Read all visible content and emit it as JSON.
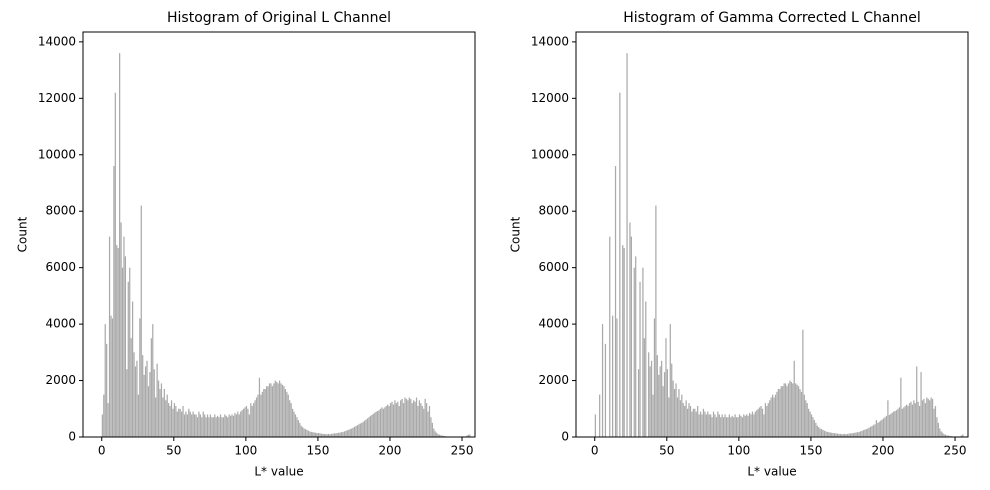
{
  "chart_data": [
    {
      "type": "histogram",
      "title": "Histogram of Original L Channel",
      "x_label": "L* value",
      "y_label": "Count",
      "color": "#a9a9a9",
      "bins": [
        0,
        1,
        2,
        3,
        4,
        5,
        6,
        7,
        8,
        9,
        10,
        11,
        12,
        13,
        14,
        15,
        16,
        17,
        18,
        19,
        20,
        21,
        22,
        23,
        24,
        25,
        26,
        27,
        28,
        29,
        30,
        31,
        32,
        33,
        34,
        35,
        36,
        37,
        38,
        39,
        40,
        41,
        42,
        43,
        44,
        45,
        46,
        47,
        48,
        49,
        50,
        51,
        52,
        53,
        54,
        55,
        56,
        57,
        58,
        59,
        60,
        61,
        62,
        63,
        64,
        65,
        66,
        67,
        68,
        69,
        70,
        71,
        72,
        73,
        74,
        75,
        76,
        77,
        78,
        79,
        80,
        81,
        82,
        83,
        84,
        85,
        86,
        87,
        88,
        89,
        90,
        91,
        92,
        93,
        94,
        95,
        96,
        97,
        98,
        99,
        100,
        101,
        102,
        103,
        104,
        105,
        106,
        107,
        108,
        109,
        110,
        111,
        112,
        113,
        114,
        115,
        116,
        117,
        118,
        119,
        120,
        121,
        122,
        123,
        124,
        125,
        126,
        127,
        128,
        129,
        130,
        131,
        132,
        133,
        134,
        135,
        136,
        137,
        138,
        139,
        140,
        141,
        142,
        143,
        144,
        145,
        146,
        147,
        148,
        149,
        150,
        151,
        152,
        153,
        154,
        155,
        156,
        157,
        158,
        159,
        160,
        161,
        162,
        163,
        164,
        165,
        166,
        167,
        168,
        169,
        170,
        171,
        172,
        173,
        174,
        175,
        176,
        177,
        178,
        179,
        180,
        181,
        182,
        183,
        184,
        185,
        186,
        187,
        188,
        189,
        190,
        191,
        192,
        193,
        194,
        195,
        196,
        197,
        198,
        199,
        200,
        201,
        202,
        203,
        204,
        205,
        206,
        207,
        208,
        209,
        210,
        211,
        212,
        213,
        214,
        215,
        216,
        217,
        218,
        219,
        220,
        221,
        222,
        223,
        224,
        225,
        226,
        227,
        228,
        229,
        230,
        231,
        232,
        233,
        234,
        235,
        236,
        237,
        238,
        239,
        240,
        241,
        242,
        243,
        244,
        245,
        246,
        247,
        248,
        249,
        250,
        251,
        252,
        253,
        254,
        255,
        256
      ],
      "values": [
        800,
        1500,
        4000,
        3300,
        1200,
        7100,
        4300,
        4200,
        9600,
        12200,
        6800,
        6700,
        13600,
        7600,
        6000,
        7100,
        6400,
        2400,
        5500,
        6000,
        3500,
        4800,
        3000,
        2500,
        2700,
        1500,
        4200,
        8200,
        2900,
        2200,
        2500,
        2700,
        1800,
        2300,
        3500,
        4000,
        2400,
        1400,
        2600,
        2000,
        1700,
        1900,
        1400,
        1700,
        1300,
        1500,
        1200,
        1100,
        1300,
        1000,
        1200,
        1100,
        900,
        1000,
        1000,
        900,
        1100,
        800,
        900,
        800,
        1000,
        900,
        800,
        900,
        800,
        800,
        700,
        900,
        800,
        700,
        900,
        800,
        700,
        800,
        700,
        800,
        700,
        700,
        800,
        700,
        750,
        700,
        800,
        700,
        700,
        800,
        750,
        700,
        800,
        750,
        800,
        750,
        850,
        800,
        900,
        800,
        900,
        950,
        1000,
        1050,
        1100,
        1000,
        800,
        1200,
        1100,
        1200,
        1300,
        1400,
        1500,
        2100,
        1500,
        1600,
        1700,
        1700,
        1800,
        1800,
        1900,
        1900,
        1800,
        1900,
        2000,
        1950,
        1900,
        2000,
        1900,
        1850,
        1800,
        1700,
        1600,
        1500,
        1300,
        1200,
        1000,
        900,
        800,
        700,
        600,
        500,
        400,
        350,
        300,
        280,
        250,
        220,
        200,
        180,
        170,
        160,
        150,
        140,
        140,
        130,
        120,
        110,
        110,
        100,
        100,
        110,
        100,
        110,
        120,
        130,
        130,
        140,
        150,
        160,
        170,
        180,
        200,
        220,
        240,
        260,
        280,
        300,
        330,
        360,
        390,
        420,
        450,
        480,
        500,
        540,
        580,
        620,
        660,
        700,
        750,
        780,
        820,
        860,
        900,
        920,
        950,
        1000,
        1050,
        1000,
        1050,
        1100,
        1150,
        1100,
        1200,
        1250,
        1150,
        1300,
        1200,
        1250,
        1100,
        1300,
        1350,
        1200,
        1400,
        1350,
        1300,
        1400,
        1350,
        1200,
        1300,
        1250,
        1400,
        1100,
        1300,
        1200,
        1100,
        1000,
        1350,
        1200,
        900,
        1100,
        700,
        500,
        300,
        200,
        150,
        100,
        80,
        60,
        50,
        40,
        30,
        20,
        20,
        15,
        10,
        10,
        10,
        10,
        10,
        10,
        10,
        10,
        20,
        10,
        10,
        50,
        80,
        90
      ],
      "xlim": [
        -13,
        259
      ],
      "ylim": [
        0,
        14350
      ],
      "xticks": [
        0,
        50,
        100,
        150,
        200,
        250
      ],
      "yticks": [
        0,
        2000,
        4000,
        6000,
        8000,
        10000,
        12000,
        14000
      ]
    },
    {
      "type": "histogram",
      "title": "Histogram of Gamma Corrected L Channel",
      "x_label": "L* value",
      "y_label": "Count",
      "color": "#a9a9a9",
      "bins": [
        0,
        1,
        2,
        3,
        4,
        5,
        6,
        7,
        8,
        9,
        10,
        11,
        12,
        13,
        14,
        15,
        16,
        17,
        18,
        19,
        20,
        21,
        22,
        23,
        24,
        25,
        26,
        27,
        28,
        29,
        30,
        31,
        32,
        33,
        34,
        35,
        36,
        37,
        38,
        39,
        40,
        41,
        42,
        43,
        44,
        45,
        46,
        47,
        48,
        49,
        50,
        51,
        52,
        53,
        54,
        55,
        56,
        57,
        58,
        59,
        60,
        61,
        62,
        63,
        64,
        65,
        66,
        67,
        68,
        69,
        70,
        71,
        72,
        73,
        74,
        75,
        76,
        77,
        78,
        79,
        80,
        81,
        82,
        83,
        84,
        85,
        86,
        87,
        88,
        89,
        90,
        91,
        92,
        93,
        94,
        95,
        96,
        97,
        98,
        99,
        100,
        101,
        102,
        103,
        104,
        105,
        106,
        107,
        108,
        109,
        110,
        111,
        112,
        113,
        114,
        115,
        116,
        117,
        118,
        119,
        120,
        121,
        122,
        123,
        124,
        125,
        126,
        127,
        128,
        129,
        130,
        131,
        132,
        133,
        134,
        135,
        136,
        137,
        138,
        139,
        140,
        141,
        142,
        143,
        144,
        145,
        146,
        147,
        148,
        149,
        150,
        151,
        152,
        153,
        154,
        155,
        156,
        157,
        158,
        159,
        160,
        161,
        162,
        163,
        164,
        165,
        166,
        167,
        168,
        169,
        170,
        171,
        172,
        173,
        174,
        175,
        176,
        177,
        178,
        179,
        180,
        181,
        182,
        183,
        184,
        185,
        186,
        187,
        188,
        189,
        190,
        191,
        192,
        193,
        194,
        195,
        196,
        197,
        198,
        199,
        200,
        201,
        202,
        203,
        204,
        205,
        206,
        207,
        208,
        209,
        210,
        211,
        212,
        213,
        214,
        215,
        216,
        217,
        218,
        219,
        220,
        221,
        222,
        223,
        224,
        225,
        226,
        227,
        228,
        229,
        230,
        231,
        232,
        233,
        234,
        235,
        236,
        237,
        238,
        239,
        240,
        241,
        242,
        243,
        244,
        245,
        246,
        247,
        248,
        249,
        250,
        251,
        252,
        253,
        254,
        255,
        256
      ],
      "values": [
        800,
        0,
        0,
        1500,
        0,
        4000,
        0,
        3300,
        0,
        0,
        7100,
        0,
        4300,
        0,
        9600,
        4200,
        0,
        12200,
        0,
        6800,
        6700,
        0,
        13600,
        0,
        7600,
        7100,
        0,
        6000,
        6400,
        0,
        2400,
        5500,
        0,
        6000,
        3500,
        4800,
        0,
        3000,
        2500,
        2700,
        1500,
        4200,
        8200,
        2900,
        2200,
        2500,
        2700,
        1800,
        2300,
        3500,
        2400,
        1400,
        4000,
        2600,
        2000,
        1700,
        1900,
        1400,
        1700,
        1300,
        1500,
        1200,
        1100,
        1300,
        1000,
        1200,
        1100,
        900,
        1000,
        1000,
        900,
        1100,
        800,
        900,
        800,
        1000,
        900,
        800,
        900,
        800,
        800,
        700,
        900,
        800,
        700,
        900,
        800,
        700,
        800,
        700,
        800,
        700,
        700,
        800,
        700,
        750,
        700,
        800,
        700,
        700,
        800,
        750,
        700,
        800,
        750,
        800,
        750,
        850,
        800,
        900,
        800,
        900,
        950,
        1000,
        1050,
        1100,
        1000,
        800,
        1200,
        1100,
        1200,
        1300,
        1400,
        1500,
        1400,
        1500,
        1600,
        1700,
        1700,
        1800,
        1800,
        1900,
        1900,
        1800,
        1900,
        2000,
        1950,
        1900,
        2700,
        1900,
        1850,
        1800,
        1700,
        1600,
        3800,
        1500,
        1300,
        1200,
        1000,
        900,
        800,
        700,
        600,
        500,
        400,
        350,
        300,
        280,
        250,
        220,
        200,
        180,
        170,
        160,
        150,
        140,
        140,
        130,
        120,
        110,
        110,
        100,
        100,
        110,
        100,
        110,
        120,
        130,
        130,
        140,
        150,
        160,
        170,
        180,
        200,
        220,
        240,
        260,
        280,
        300,
        330,
        360,
        390,
        420,
        450,
        600,
        500,
        540,
        580,
        620,
        660,
        700,
        750,
        1300,
        780,
        820,
        860,
        900,
        920,
        950,
        1000,
        1050,
        2100,
        1000,
        1050,
        1100,
        1150,
        1100,
        1200,
        1250,
        1150,
        1300,
        1200,
        2500,
        1250,
        1100,
        2300,
        1300,
        1350,
        1200,
        1400,
        1350,
        1300,
        1400,
        1350,
        1000,
        1100,
        700,
        500,
        300,
        200,
        150,
        100,
        80,
        60,
        50,
        40,
        30,
        20,
        20,
        15,
        10,
        10,
        20,
        50,
        90
      ],
      "xlim": [
        -13,
        259
      ],
      "ylim": [
        0,
        14350
      ],
      "xticks": [
        0,
        50,
        100,
        150,
        200,
        250
      ],
      "yticks": [
        0,
        2000,
        4000,
        6000,
        8000,
        10000,
        12000,
        14000
      ]
    }
  ]
}
